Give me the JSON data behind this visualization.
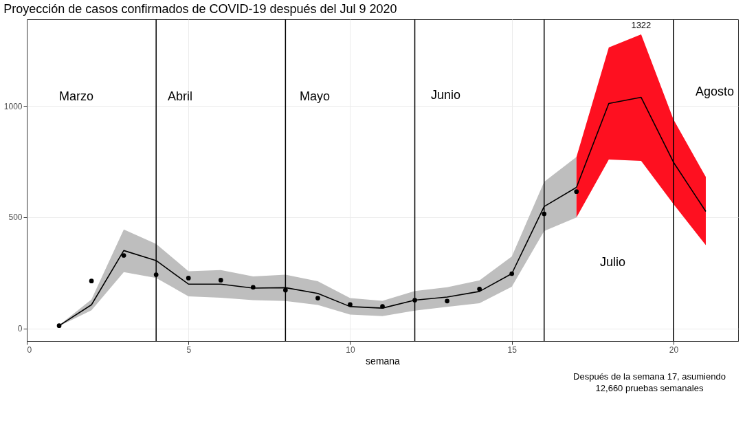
{
  "chart_data": {
    "type": "line",
    "title": "Proyección de casos confirmados de COVID-19 después del Jul 9 2020",
    "xlabel": "semana",
    "xlim": [
      0,
      22
    ],
    "xticks": [
      0,
      5,
      10,
      15,
      20
    ],
    "ylim": [
      -57,
      1390
    ],
    "yticks": [
      0,
      500,
      1000
    ],
    "grid": true,
    "series": [
      {
        "color": "#000000",
        "marker": "none",
        "x": [
          1,
          2,
          3,
          4,
          5,
          6,
          7,
          8,
          9,
          10,
          11,
          12,
          13,
          14,
          15,
          16,
          17
        ],
        "values": [
          12,
          106,
          350,
          305,
          199,
          199,
          181,
          183,
          157,
          98,
          91,
          127,
          141,
          166,
          246,
          548,
          634
        ],
        "lower": [
          10,
          81,
          253,
          227,
          144,
          138,
          127,
          123,
          105,
          62,
          55,
          80,
          97,
          113,
          187,
          438,
          499
        ],
        "upper": [
          14,
          130,
          445,
          380,
          257,
          262,
          234,
          241,
          212,
          136,
          124,
          168,
          185,
          216,
          323,
          659,
          771
        ]
      },
      {
        "color": "#000000",
        "marker": "none",
        "x": [
          17,
          18,
          19,
          20,
          21
        ],
        "values": [
          634,
          1011,
          1039,
          747,
          526
        ],
        "lower": [
          499,
          759,
          753,
          559,
          374
        ],
        "upper": [
          771,
          1263,
          1322,
          939,
          681
        ]
      },
      {
        "type": "scatter",
        "color": "#000000",
        "marker": "circle",
        "x": [
          1,
          2,
          3,
          4,
          5,
          6,
          7,
          8,
          9,
          10,
          11,
          12,
          13,
          14,
          15,
          16,
          17
        ],
        "values": [
          12,
          213,
          328,
          241,
          226,
          217,
          185,
          172,
          136,
          107,
          99,
          127,
          123,
          177,
          246,
          515,
          615
        ]
      }
    ],
    "ref_lines": [
      {
        "axis": "x",
        "value": 4,
        "color": "#000000"
      },
      {
        "axis": "x",
        "value": 8,
        "color": "#000000"
      },
      {
        "axis": "x",
        "value": 12,
        "color": "#000000"
      },
      {
        "axis": "x",
        "value": 16,
        "color": "#000000"
      },
      {
        "axis": "x",
        "value": 20,
        "color": "#000000"
      }
    ],
    "annotations": [
      "Marzo",
      "Abril",
      "Mayo",
      "Junio",
      "Julio",
      "Agosto",
      {
        "text": "1322",
        "x": 19,
        "y": 1322
      },
      "Después de la semana 17, asumiendo\n12,660 pruebas semanales"
    ]
  }
}
